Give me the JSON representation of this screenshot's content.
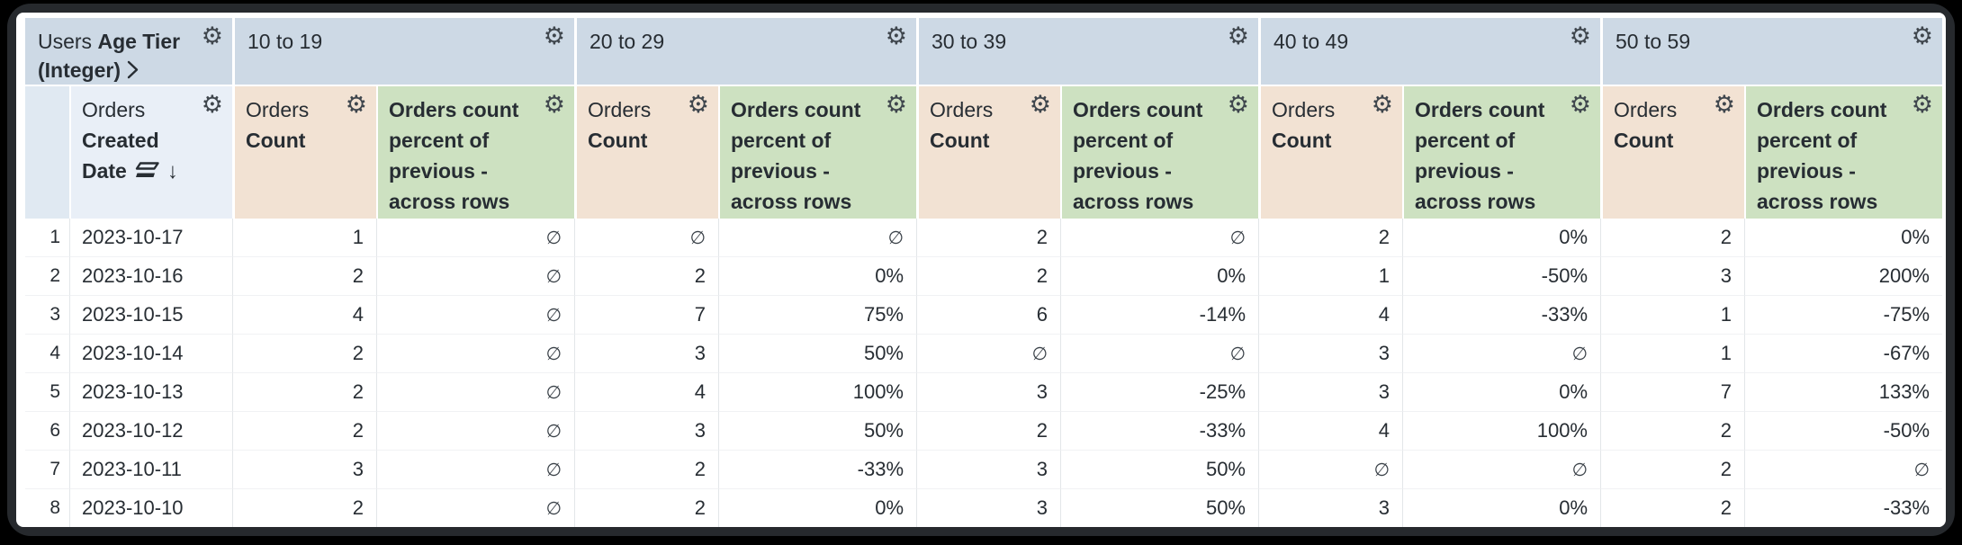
{
  "table": {
    "dimension_header": {
      "view": "Users",
      "field": "Age Tier (Integer)"
    },
    "row_field_header": {
      "view": "Orders",
      "field": "Created Date",
      "sort_direction": "descending"
    },
    "pivot_values": [
      "10 to 19",
      "20 to 29",
      "30 to 39",
      "40 to 49",
      "50 to 59"
    ],
    "measure_columns": [
      {
        "view": "Orders",
        "field": "Count",
        "kind": "measure"
      },
      {
        "view": "",
        "field": "Orders count percent of previous - across rows",
        "kind": "table_calculation"
      }
    ],
    "rows": [
      {
        "n": "1",
        "date": "2023-10-17",
        "cells": [
          "1",
          "∅",
          "∅",
          "∅",
          "2",
          "∅",
          "2",
          "0%",
          "2",
          "0%"
        ]
      },
      {
        "n": "2",
        "date": "2023-10-16",
        "cells": [
          "2",
          "∅",
          "2",
          "0%",
          "2",
          "0%",
          "1",
          "-50%",
          "3",
          "200%"
        ]
      },
      {
        "n": "3",
        "date": "2023-10-15",
        "cells": [
          "4",
          "∅",
          "7",
          "75%",
          "6",
          "-14%",
          "4",
          "-33%",
          "1",
          "-75%"
        ]
      },
      {
        "n": "4",
        "date": "2023-10-14",
        "cells": [
          "2",
          "∅",
          "3",
          "50%",
          "∅",
          "∅",
          "3",
          "∅",
          "1",
          "-67%"
        ]
      },
      {
        "n": "5",
        "date": "2023-10-13",
        "cells": [
          "2",
          "∅",
          "4",
          "100%",
          "3",
          "-25%",
          "3",
          "0%",
          "7",
          "133%"
        ]
      },
      {
        "n": "6",
        "date": "2023-10-12",
        "cells": [
          "2",
          "∅",
          "3",
          "50%",
          "2",
          "-33%",
          "4",
          "100%",
          "2",
          "-50%"
        ]
      },
      {
        "n": "7",
        "date": "2023-10-11",
        "cells": [
          "3",
          "∅",
          "2",
          "-33%",
          "3",
          "50%",
          "∅",
          "∅",
          "2",
          "∅"
        ]
      },
      {
        "n": "8",
        "date": "2023-10-10",
        "cells": [
          "2",
          "∅",
          "2",
          "0%",
          "3",
          "50%",
          "3",
          "0%",
          "2",
          "-33%"
        ]
      }
    ],
    "null_symbol": "∅"
  },
  "icons": {
    "gear": "⚙",
    "sort_desc_arrow": "↓",
    "expand_chevron": "❯"
  },
  "colors": {
    "pivot_header_bg": "#cdd9e5",
    "corner_bg": "#e0e9f2",
    "row_field_header_bg": "#e9eff7",
    "measure_header_bg": "#f2e2d3",
    "calc_header_bg": "#cde1c1",
    "even_row_dimension_bg": "#eff3f9",
    "even_row_measure_bg": "#faf2ec",
    "even_row_calc_bg": "#eff6ec",
    "text": "#272d33",
    "frame": "#26292d"
  }
}
